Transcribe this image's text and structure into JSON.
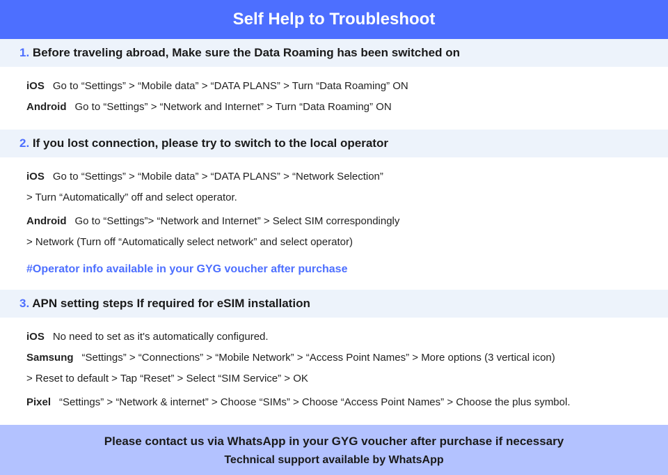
{
  "colors": {
    "header_bg": "#4d6fff",
    "header_text": "#ffffff",
    "section_head_bg": "#edf3fb",
    "accent": "#4d6fff",
    "body_text": "#222222",
    "footer_bg": "#b3c2ff",
    "footer_text": "#1a1a1a"
  },
  "typography": {
    "header_fontsize": 24,
    "section_head_fontsize": 17,
    "body_fontsize": 15,
    "note_fontsize": 16,
    "footer1_fontsize": 17,
    "footer2_fontsize": 16,
    "font_family": "sans-serif"
  },
  "header": {
    "title": "Self Help to Troubleshoot"
  },
  "sections": [
    {
      "num": "1.",
      "title_lead": "Before traveling abroad,",
      "title_rest": " Make sure the Data Roaming has been switched on",
      "rows": [
        {
          "platform": "iOS",
          "text": "Go to “Settings” > “Mobile data” > “DATA PLANS” > Turn “Data Roaming” ON"
        },
        {
          "platform": "Android",
          "text": "Go to “Settings” > “Network and Internet” > Turn “Data Roaming” ON"
        }
      ]
    },
    {
      "num": "2.",
      "title_lead": "",
      "title_rest": "If you lost connection, please try to switch to the local operator",
      "rows": [
        {
          "platform": "iOS",
          "text": "Go to “Settings” > “Mobile data” > “DATA PLANS” > “Network Selection”",
          "cont": "> Turn “Automatically” off and select operator."
        },
        {
          "platform": "Android",
          "text": "Go to “Settings”>  “Network and Internet” > Select SIM correspondingly",
          "cont": "> Network (Turn off “Automatically select network” and select operator)"
        }
      ],
      "note": "#Operator info available in your GYG voucher after purchase"
    },
    {
      "num": "3.",
      "title_lead": "",
      "title_rest": "APN setting steps If required for eSIM installation",
      "rows": [
        {
          "platform": "iOS",
          "text": "No need to set as it's automatically configured."
        },
        {
          "platform": "Samsung",
          "text": "“Settings” > “Connections” > “Mobile Network” > “Access Point Names” > More options (3 vertical icon)",
          "cont": "> Reset to default > Tap “Reset” > Select “SIM Service” > OK"
        },
        {
          "platform": "Pixel",
          "text": "“Settings” > “Network & internet” > Choose “SIMs” > Choose “Access Point Names” > Choose the plus symbol."
        }
      ]
    }
  ],
  "footer": {
    "line1": "Please contact us via WhatsApp  in your GYG voucher after purchase if necessary",
    "line2": "Technical support available by WhatsApp"
  }
}
